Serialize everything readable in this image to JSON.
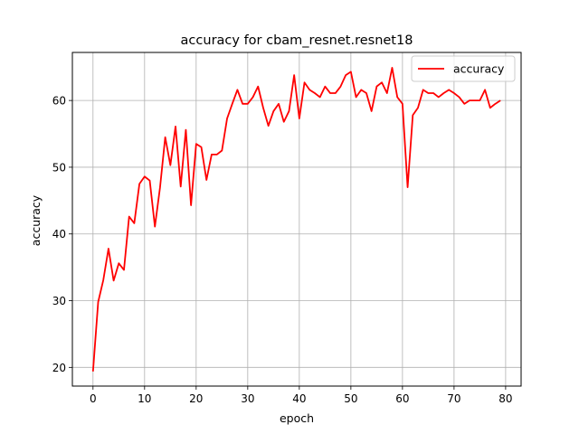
{
  "chart_data": {
    "type": "line",
    "title": "accuracy for cbam_resnet.resnet18",
    "xlabel": "epoch",
    "ylabel": "accuracy",
    "xlim": [
      -4,
      83
    ],
    "ylim": [
      17.2,
      67.2
    ],
    "xticks": [
      0,
      10,
      20,
      30,
      40,
      50,
      60,
      70,
      80
    ],
    "yticks": [
      20,
      30,
      40,
      50,
      60
    ],
    "grid": true,
    "legend_position": "top-right",
    "series": [
      {
        "name": "accuracy",
        "color": "#ff0000",
        "x": [
          0,
          1,
          2,
          3,
          4,
          5,
          6,
          7,
          8,
          9,
          10,
          11,
          12,
          13,
          14,
          15,
          16,
          17,
          18,
          19,
          20,
          21,
          22,
          23,
          24,
          25,
          26,
          27,
          28,
          29,
          30,
          31,
          32,
          33,
          34,
          35,
          36,
          37,
          38,
          39,
          40,
          41,
          42,
          43,
          44,
          45,
          46,
          47,
          48,
          49,
          50,
          51,
          52,
          53,
          54,
          55,
          56,
          57,
          58,
          59,
          60,
          61,
          62,
          63,
          64,
          65,
          66,
          67,
          68,
          69,
          70,
          71,
          72,
          73,
          74,
          75,
          76,
          77,
          78,
          79
        ],
        "values": [
          19.4,
          29.8,
          33.1,
          37.8,
          33.0,
          35.6,
          34.6,
          42.6,
          41.6,
          47.5,
          48.6,
          48.0,
          41.1,
          47.0,
          54.5,
          50.3,
          56.1,
          47.1,
          55.6,
          44.3,
          53.5,
          53.0,
          48.1,
          51.9,
          51.9,
          52.5,
          57.3,
          59.5,
          61.6,
          59.5,
          59.5,
          60.5,
          62.1,
          58.9,
          56.2,
          58.4,
          59.5,
          56.8,
          58.4,
          63.8,
          57.3,
          62.7,
          61.6,
          61.1,
          60.5,
          62.1,
          61.1,
          61.1,
          62.1,
          63.8,
          64.3,
          60.5,
          61.6,
          61.1,
          58.4,
          62.1,
          62.7,
          61.1,
          64.9,
          60.5,
          59.5,
          47.0,
          57.8,
          58.9,
          61.6,
          61.1,
          61.1,
          60.5,
          61.1,
          61.6,
          61.1,
          60.5,
          59.5,
          60.0,
          60.0,
          60.0,
          61.6,
          58.9,
          59.5,
          60.0
        ]
      }
    ]
  }
}
